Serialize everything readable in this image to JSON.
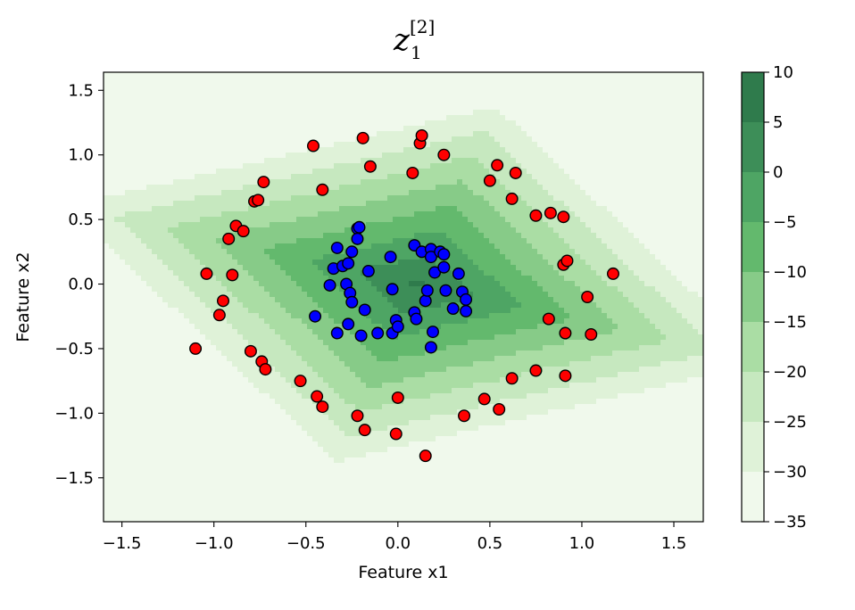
{
  "chart_data": {
    "type": "scatter",
    "title": {
      "main": "z",
      "subscript": "1",
      "superscript": "[2]"
    },
    "xlabel": "Feature x1",
    "ylabel": "Feature x2",
    "xlim": [
      -1.6,
      1.66
    ],
    "ylim": [
      -1.84,
      1.64
    ],
    "xticks": [
      -1.5,
      -1.0,
      -0.5,
      0.0,
      0.5,
      1.0,
      1.5
    ],
    "xtick_labels": [
      "−1.5",
      "−1.0",
      "−0.5",
      "0.0",
      "0.5",
      "1.0",
      "1.5"
    ],
    "yticks": [
      -1.5,
      -1.0,
      -0.5,
      0.0,
      0.5,
      1.0,
      1.5
    ],
    "ytick_labels": [
      "−1.5",
      "−1.0",
      "−0.5",
      "0.0",
      "0.5",
      "1.0",
      "1.5"
    ],
    "grid": false,
    "background": {
      "type": "filled-contour",
      "cmap": "Greens",
      "levels": [
        -35,
        -30,
        -25,
        -20,
        -15,
        -10,
        -5,
        0,
        5,
        10
      ],
      "level_colors": [
        "#f0f9ec",
        "#dff2d8",
        "#c6e8bf",
        "#aadda4",
        "#87cb88",
        "#63b96d",
        "#4ea564",
        "#3d8e58",
        "#2f7b4c"
      ],
      "center": [
        0.1,
        0.0
      ],
      "ridge_direction": [
        0.95,
        -0.3
      ],
      "value_at_center": 6,
      "gradient_across_ridge": 25,
      "gradient_along_ridge": 18
    },
    "colorbar": {
      "ticks": [
        10,
        5,
        0,
        -5,
        -10,
        -15,
        -20,
        -25,
        -30,
        -35
      ],
      "tick_labels": [
        "10",
        "5",
        "0",
        "−5",
        "−10",
        "−15",
        "−20",
        "−25",
        "−30",
        "−35"
      ]
    },
    "series": [
      {
        "color": "#ff0000",
        "edgecolor": "#000000",
        "points": [
          [
            -1.1,
            -0.5
          ],
          [
            -1.04,
            0.08
          ],
          [
            -0.97,
            -0.24
          ],
          [
            -0.95,
            -0.13
          ],
          [
            -0.92,
            0.35
          ],
          [
            -0.9,
            0.07
          ],
          [
            -0.88,
            0.45
          ],
          [
            -0.84,
            0.41
          ],
          [
            -0.8,
            -0.52
          ],
          [
            -0.78,
            0.64
          ],
          [
            -0.76,
            0.65
          ],
          [
            -0.74,
            -0.6
          ],
          [
            -0.73,
            0.79
          ],
          [
            -0.72,
            -0.66
          ],
          [
            -0.53,
            -0.75
          ],
          [
            -0.46,
            1.07
          ],
          [
            -0.44,
            -0.87
          ],
          [
            -0.41,
            -0.95
          ],
          [
            -0.41,
            0.73
          ],
          [
            -0.22,
            -1.02
          ],
          [
            -0.19,
            1.13
          ],
          [
            -0.18,
            -1.13
          ],
          [
            -0.15,
            0.91
          ],
          [
            -0.01,
            -1.16
          ],
          [
            0.0,
            -0.88
          ],
          [
            0.08,
            0.86
          ],
          [
            0.12,
            1.09
          ],
          [
            0.13,
            1.15
          ],
          [
            0.15,
            -1.33
          ],
          [
            0.25,
            1.0
          ],
          [
            0.36,
            -1.02
          ],
          [
            0.47,
            -0.89
          ],
          [
            0.5,
            0.8
          ],
          [
            0.54,
            0.92
          ],
          [
            0.55,
            -0.97
          ],
          [
            0.62,
            -0.73
          ],
          [
            0.62,
            0.66
          ],
          [
            0.64,
            0.86
          ],
          [
            0.75,
            0.53
          ],
          [
            0.75,
            -0.67
          ],
          [
            0.82,
            -0.27
          ],
          [
            0.83,
            0.55
          ],
          [
            0.9,
            0.52
          ],
          [
            0.9,
            0.15
          ],
          [
            0.92,
            0.18
          ],
          [
            0.91,
            -0.38
          ],
          [
            0.91,
            -0.71
          ],
          [
            1.03,
            -0.1
          ],
          [
            1.05,
            -0.39
          ],
          [
            1.17,
            0.08
          ]
        ]
      },
      {
        "color": "#0000ff",
        "edgecolor": "#000000",
        "points": [
          [
            -0.45,
            -0.25
          ],
          [
            -0.37,
            -0.01
          ],
          [
            -0.35,
            0.12
          ],
          [
            -0.33,
            -0.38
          ],
          [
            -0.33,
            0.28
          ],
          [
            -0.3,
            0.14
          ],
          [
            -0.28,
            0.0
          ],
          [
            -0.27,
            0.16
          ],
          [
            -0.27,
            -0.31
          ],
          [
            -0.26,
            -0.07
          ],
          [
            -0.25,
            -0.14
          ],
          [
            -0.25,
            0.25
          ],
          [
            -0.22,
            0.43
          ],
          [
            -0.22,
            0.35
          ],
          [
            -0.21,
            0.44
          ],
          [
            -0.2,
            -0.4
          ],
          [
            -0.18,
            -0.2
          ],
          [
            -0.16,
            0.1
          ],
          [
            -0.11,
            -0.38
          ],
          [
            -0.04,
            0.21
          ],
          [
            -0.03,
            -0.04
          ],
          [
            -0.03,
            -0.38
          ],
          [
            -0.01,
            -0.28
          ],
          [
            0.0,
            -0.33
          ],
          [
            0.09,
            -0.22
          ],
          [
            0.09,
            0.3
          ],
          [
            0.1,
            -0.27
          ],
          [
            0.13,
            0.25
          ],
          [
            0.15,
            -0.13
          ],
          [
            0.16,
            -0.05
          ],
          [
            0.18,
            0.27
          ],
          [
            0.18,
            -0.49
          ],
          [
            0.18,
            0.21
          ],
          [
            0.19,
            -0.37
          ],
          [
            0.2,
            0.09
          ],
          [
            0.23,
            0.25
          ],
          [
            0.25,
            0.23
          ],
          [
            0.25,
            0.13
          ],
          [
            0.26,
            -0.05
          ],
          [
            0.3,
            -0.19
          ],
          [
            0.33,
            0.08
          ],
          [
            0.35,
            -0.06
          ],
          [
            0.37,
            -0.21
          ],
          [
            0.37,
            -0.12
          ]
        ]
      }
    ]
  }
}
